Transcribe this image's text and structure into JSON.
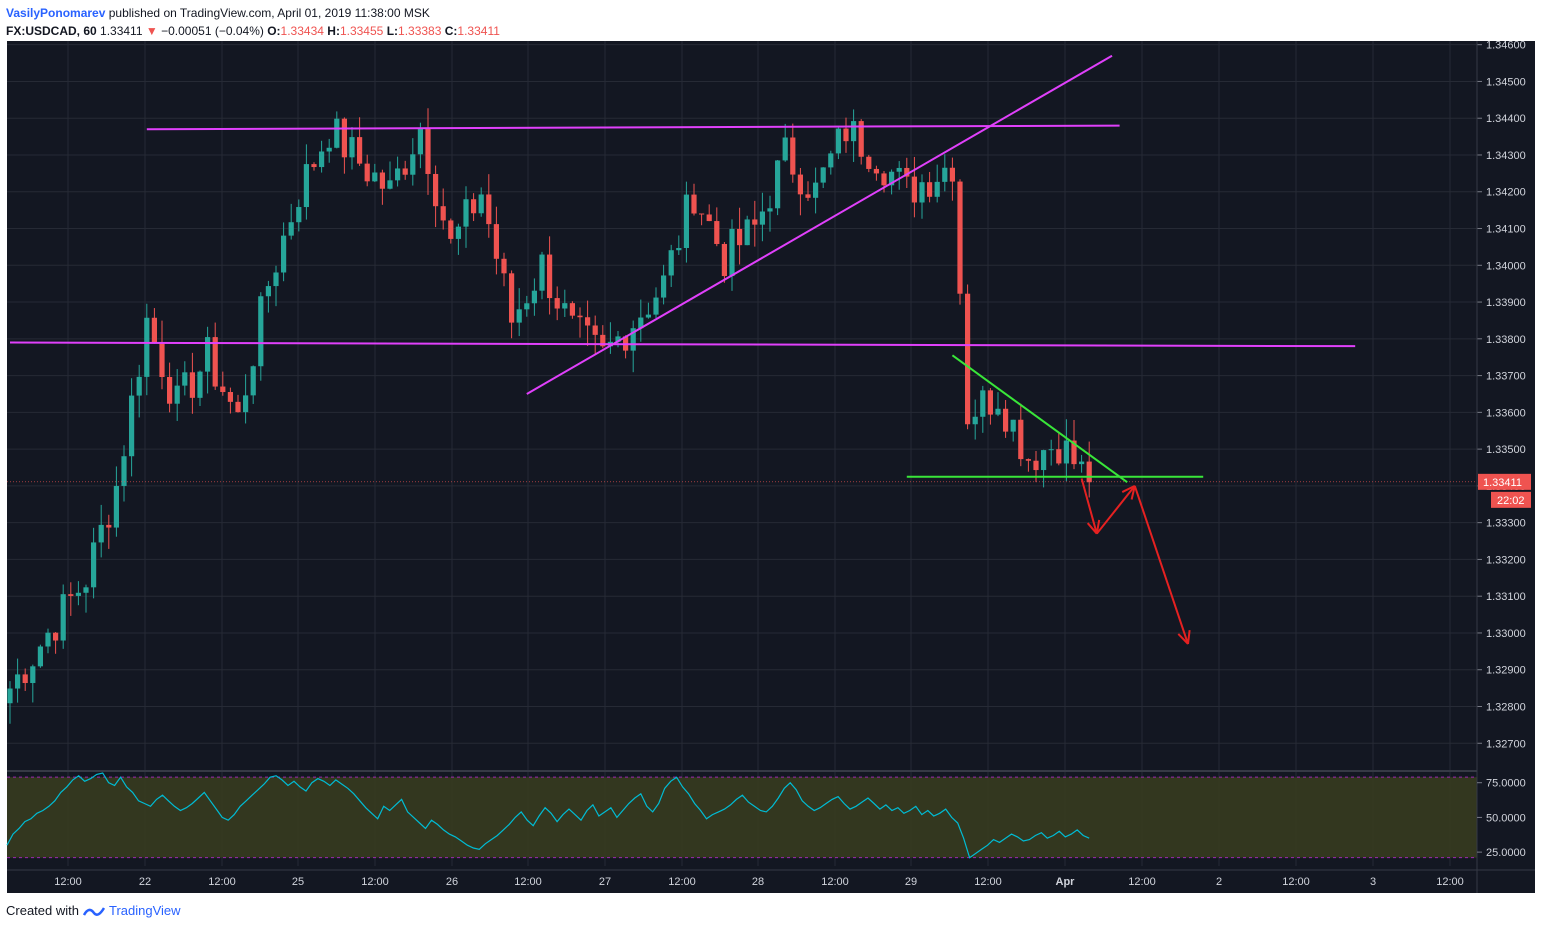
{
  "header": {
    "author": "VasilyPonomarev",
    "published": "published on TradingView.com, April 01, 2019 11:38:00 MSK",
    "symbol": "FX:USDCAD, 60",
    "last": "1.33411",
    "change_arrow": "▼",
    "change": "−0.00051 (−0.04%)",
    "o_label": "O:",
    "o": "1.33434",
    "h_label": "H:",
    "h": "1.33455",
    "l_label": "L:",
    "l": "1.33383",
    "c_label": "C:",
    "c": "1.33411"
  },
  "footer": {
    "created_with": "Created with",
    "brand": "TradingView"
  },
  "colors": {
    "background": "#131722",
    "grid": "#262a35",
    "up": "#26a69a",
    "down": "#ef5350",
    "magenta": "#e040fb",
    "green": "#39e639",
    "arrow": "#e52121",
    "rsi_line": "#00bcd4",
    "rsi_band": "#3a3d1e"
  },
  "chart_data": [
    {
      "type": "candlestick",
      "title": "FX:USDCAD, 60",
      "ylim": [
        1.3263,
        1.3461
      ],
      "y_ticks": [
        1.327,
        1.328,
        1.329,
        1.33,
        1.331,
        1.332,
        1.333,
        1.334,
        1.335,
        1.336,
        1.337,
        1.338,
        1.339,
        1.34,
        1.341,
        1.342,
        1.343,
        1.344,
        1.345,
        1.346
      ],
      "y_tick_labels": [
        "1.32700",
        "1.32800",
        "1.32900",
        "1.33000",
        "1.33100",
        "1.33200",
        "1.33300",
        "1.33400",
        "1.33500",
        "1.33600",
        "1.33700",
        "1.33800",
        "1.33900",
        "1.34000",
        "1.34100",
        "1.34200",
        "1.34300",
        "1.34400",
        "1.34500",
        "1.34600"
      ],
      "x_tick_labels": [
        "12:00",
        "22",
        "12:00",
        "25",
        "12:00",
        "26",
        "12:00",
        "27",
        "12:00",
        "28",
        "12:00",
        "29",
        "12:00",
        "Apr",
        "12:00",
        "2",
        "12:00",
        "3",
        "12:00"
      ],
      "last_price_label": "1.33411",
      "countdown_label": "22:02",
      "price_path": [
        [
          0,
          1.3285
        ],
        [
          10,
          1.3315
        ],
        [
          14,
          1.334
        ],
        [
          18,
          1.3385
        ],
        [
          22,
          1.3362
        ],
        [
          26,
          1.3375
        ],
        [
          30,
          1.3358
        ],
        [
          34,
          1.3395
        ],
        [
          38,
          1.342
        ],
        [
          42,
          1.3437
        ],
        [
          46,
          1.3428
        ],
        [
          50,
          1.342
        ],
        [
          54,
          1.3438
        ],
        [
          58,
          1.3405
        ],
        [
          62,
          1.342
        ],
        [
          66,
          1.3385
        ],
        [
          70,
          1.34
        ],
        [
          74,
          1.3382
        ],
        [
          78,
          1.3375
        ],
        [
          82,
          1.3385
        ],
        [
          86,
          1.3395
        ],
        [
          90,
          1.342
        ],
        [
          94,
          1.3402
        ],
        [
          98,
          1.341
        ],
        [
          102,
          1.343
        ],
        [
          106,
          1.342
        ],
        [
          110,
          1.3437
        ],
        [
          114,
          1.343
        ],
        [
          118,
          1.342
        ],
        [
          124,
          1.3428
        ],
        [
          126,
          1.336
        ],
        [
          130,
          1.3365
        ],
        [
          134,
          1.3348
        ],
        [
          138,
          1.3352
        ],
        [
          142,
          1.3341
        ]
      ],
      "annotations": {
        "magenta_lines": [
          {
            "from": [
              18,
              1.3437
            ],
            "to": [
              146,
              1.3438
            ]
          },
          {
            "from": [
              0,
              1.3379
            ],
            "to": [
              177,
              1.3378
            ]
          },
          {
            "from": [
              68,
              1.3365
            ],
            "to": [
              145,
              1.3457
            ]
          }
        ],
        "green_lines": [
          {
            "from": [
              124,
              1.33755
            ],
            "to": [
              147,
              1.3341
            ]
          },
          {
            "from": [
              118,
              1.33425
            ],
            "to": [
              157,
              1.33425
            ]
          }
        ],
        "red_arrows": [
          {
            "from": [
              141,
              1.3342
            ],
            "to": [
              143,
              1.3327
            ]
          },
          {
            "from": [
              143,
              1.3327
            ],
            "to": [
              148,
              1.334
            ]
          },
          {
            "from": [
              148,
              1.334
            ],
            "to": [
              155,
              1.3297
            ]
          }
        ]
      }
    },
    {
      "type": "line",
      "title": "RSI",
      "ylim": [
        15,
        82
      ],
      "y_ticks": [
        25,
        50,
        75
      ],
      "y_tick_labels": [
        "25.0000",
        "50.0000",
        "75.0000"
      ],
      "band": [
        30,
        70
      ],
      "values": [
        30,
        38,
        42,
        47,
        49,
        53,
        55,
        58,
        62,
        68,
        72,
        77,
        80,
        76,
        78,
        81,
        82,
        75,
        73,
        79,
        72,
        68,
        62,
        60,
        58,
        63,
        66,
        62,
        58,
        55,
        57,
        60,
        64,
        68,
        62,
        56,
        50,
        48,
        52,
        58,
        62,
        66,
        70,
        74,
        79,
        80,
        77,
        73,
        76,
        72,
        69,
        75,
        78,
        76,
        73,
        77,
        74,
        71,
        67,
        62,
        57,
        53,
        49,
        58,
        55,
        59,
        63,
        54,
        50,
        46,
        42,
        48,
        45,
        41,
        38,
        36,
        33,
        30,
        28,
        27,
        31,
        34,
        37,
        41,
        45,
        50,
        54,
        48,
        44,
        51,
        57,
        53,
        47,
        52,
        56,
        52,
        48,
        55,
        59,
        51,
        54,
        57,
        50,
        55,
        60,
        64,
        67,
        58,
        54,
        60,
        71,
        76,
        79,
        72,
        67,
        60,
        55,
        49,
        52,
        54,
        56,
        59,
        63,
        66,
        61,
        58,
        55,
        54,
        58,
        64,
        71,
        75,
        70,
        62,
        58,
        55,
        57,
        60,
        63,
        65,
        60,
        56,
        58,
        61,
        64,
        60,
        56,
        59,
        55,
        57,
        53,
        55,
        58,
        52,
        55,
        51,
        53,
        56,
        50,
        46,
        35,
        21,
        24,
        27,
        30,
        34,
        32,
        35,
        38,
        36,
        33,
        34,
        37,
        39,
        35,
        37,
        40,
        36,
        38,
        41,
        37,
        35
      ]
    }
  ]
}
